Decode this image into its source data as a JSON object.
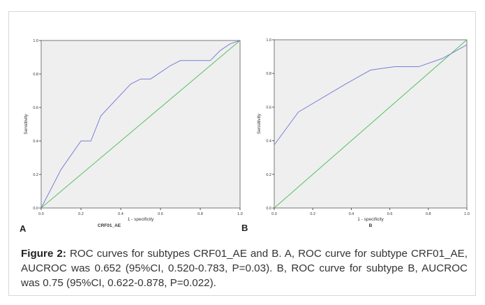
{
  "panels": [
    {
      "letter": "A",
      "group_label": "CRF01_AE"
    },
    {
      "letter": "B",
      "group_label": "B"
    }
  ],
  "caption": {
    "label": "Figure 2:",
    "text": "ROC curves for subtypes CRF01_AE and B. A, ROC curve for subtype CRF01_AE, AUCROC was 0.652 (95%CI, 0.520-0.783, P=0.03). B, ROC curve for subtype B, AUCROC was 0.75 (95%CI, 0.622-0.878, P=0.022)."
  },
  "colors": {
    "plot_bg": "#efefef",
    "roc_line": "#7b7fd6",
    "reference_line": "#57c061"
  },
  "chart_data": [
    {
      "type": "line",
      "xlabel": "1 - specificity",
      "ylabel": "Sensitivity",
      "xlim": [
        0,
        1
      ],
      "ylim": [
        0,
        1
      ],
      "xticks": [
        "0.0",
        "0.2",
        "0.4",
        "0.6",
        "0.8",
        "1.0"
      ],
      "yticks": [
        "0.0",
        "0.2",
        "0.4",
        "0.6",
        "0.8",
        "1.0"
      ],
      "grid": false,
      "series": [
        {
          "x": [
            0,
            0.1,
            0.2,
            0.25,
            0.3,
            0.45,
            0.5,
            0.55,
            0.65,
            0.7,
            0.85,
            0.9,
            0.95,
            1.0
          ],
          "y": [
            0,
            0.23,
            0.4,
            0.4,
            0.55,
            0.74,
            0.77,
            0.77,
            0.85,
            0.88,
            0.88,
            0.94,
            0.98,
            1.0
          ]
        },
        {
          "x": [
            0,
            1
          ],
          "y": [
            0,
            1
          ]
        }
      ]
    },
    {
      "type": "line",
      "xlabel": "1 - specificity",
      "ylabel": "Sensitivity",
      "xlim": [
        0,
        1
      ],
      "ylim": [
        0,
        1
      ],
      "xticks": [
        "0.0",
        "0.2",
        "0.4",
        "0.6",
        "0.8",
        "1.0"
      ],
      "yticks": [
        "0.0",
        "0.2",
        "0.4",
        "0.6",
        "0.8",
        "1.0"
      ],
      "grid": false,
      "series": [
        {
          "x": [
            0,
            0.125,
            0.375,
            0.5,
            0.625,
            0.75,
            0.875,
            1.0
          ],
          "y": [
            0.375,
            0.57,
            0.74,
            0.82,
            0.84,
            0.84,
            0.89,
            0.97
          ]
        },
        {
          "x": [
            0,
            1
          ],
          "y": [
            0,
            1
          ]
        }
      ]
    }
  ]
}
